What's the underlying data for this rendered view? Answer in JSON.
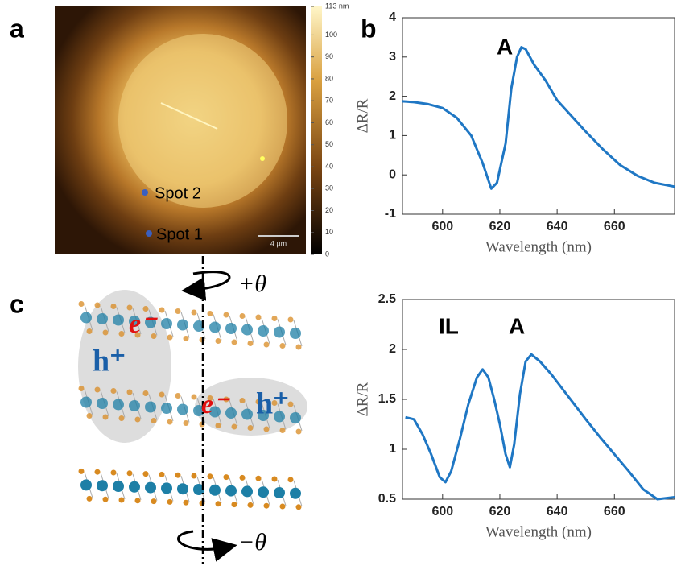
{
  "panels": [
    "a",
    "b",
    "c"
  ],
  "afm": {
    "spots": [
      "Spot 2",
      "Spot 1"
    ],
    "scale_bar": "4 µm",
    "colorbar": {
      "lim": [
        0,
        113
      ],
      "ticks": [
        0,
        10,
        20,
        30,
        40,
        50,
        60,
        70,
        80,
        90,
        100,
        {
          "value": 113,
          "label": "113 nm"
        }
      ]
    }
  },
  "diagram": {
    "twist_top": "+θ",
    "twist_bottom": "−θ",
    "carriers": [
      "e⁻",
      "h⁺",
      "e⁻",
      "h⁺"
    ]
  },
  "chart_data": [
    {
      "type": "line",
      "xlabel": "Wavelength (nm)",
      "ylabel": "ΔR/R",
      "annotations": [
        "A"
      ],
      "xlim": [
        586,
        681
      ],
      "ylim": [
        -1,
        4
      ],
      "xticks": [
        600,
        620,
        640,
        660
      ],
      "yticks": [
        -1,
        0,
        1,
        2,
        3,
        4
      ],
      "color": "#1f77c4",
      "x": [
        586,
        590,
        595,
        600,
        605,
        610,
        614,
        617,
        619,
        622,
        624,
        626,
        627.5,
        629,
        632,
        636,
        640,
        645,
        650,
        656,
        662,
        668,
        674,
        681
      ],
      "values": [
        1.87,
        1.85,
        1.8,
        1.7,
        1.45,
        1.0,
        0.3,
        -0.35,
        -0.2,
        0.8,
        2.2,
        3.0,
        3.25,
        3.2,
        2.8,
        2.4,
        1.9,
        1.5,
        1.1,
        0.65,
        0.25,
        -0.02,
        -0.2,
        -0.3
      ]
    },
    {
      "type": "line",
      "xlabel": "Wavelength (nm)",
      "ylabel": "ΔR/R",
      "annotations": [
        "IL",
        "A"
      ],
      "xlim": [
        586,
        681
      ],
      "ylim": [
        0.5,
        2.5
      ],
      "xticks": [
        600,
        620,
        640,
        660
      ],
      "yticks": [
        0.5,
        1,
        1.5,
        2,
        2.5
      ],
      "color": "#1f77c4",
      "x": [
        587,
        590,
        593,
        596,
        599,
        601,
        603,
        606,
        609,
        612,
        614,
        616,
        618,
        620,
        622,
        623.5,
        625,
        627,
        629,
        631,
        634,
        638,
        642,
        646,
        650,
        655,
        660,
        665,
        670,
        675,
        681
      ],
      "values": [
        1.32,
        1.3,
        1.15,
        0.95,
        0.72,
        0.67,
        0.78,
        1.1,
        1.45,
        1.72,
        1.8,
        1.72,
        1.5,
        1.25,
        0.95,
        0.82,
        1.05,
        1.55,
        1.88,
        1.95,
        1.88,
        1.75,
        1.6,
        1.45,
        1.3,
        1.12,
        0.95,
        0.78,
        0.6,
        0.5,
        0.52
      ]
    }
  ]
}
